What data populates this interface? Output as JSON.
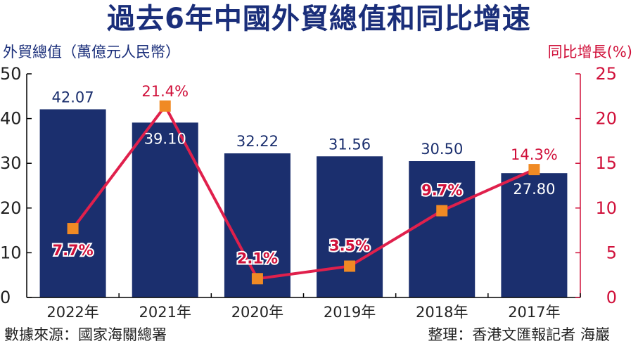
{
  "title": "過去6年中國外貿總值和同比增速",
  "left_axis_label": "外貿總值（萬億元人民幣）",
  "right_axis_label": "同比增長(%)",
  "source": "數據來源：國家海關總署",
  "credit": "整理：香港文匯報記者 海巖",
  "colors": {
    "bar": "#1b2f6e",
    "line": "#e0204c",
    "marker": "#f08a24",
    "left_axis": "#1a2e7a",
    "right_axis": "#d0103a"
  },
  "chart_data": {
    "type": "bar",
    "categories": [
      "2022年",
      "2021年",
      "2020年",
      "2019年",
      "2018年",
      "2017年"
    ],
    "series": [
      {
        "values": [
          42.07,
          39.1,
          32.22,
          31.56,
          30.5,
          27.8
        ],
        "labels": [
          "42.07",
          "39.10",
          "32.22",
          "31.56",
          "30.50",
          "27.80"
        ],
        "axis": "left",
        "kind": "bar"
      },
      {
        "values": [
          7.7,
          21.4,
          2.1,
          3.5,
          9.7,
          14.3
        ],
        "labels": [
          "7.7%",
          "21.4%",
          "2.1%",
          "3.5%",
          "9.7%",
          "14.3%"
        ],
        "axis": "right",
        "kind": "line"
      }
    ],
    "y_left": {
      "ylim": [
        0,
        50
      ],
      "ticks": [
        "0",
        "10",
        "20",
        "30",
        "40",
        "50"
      ]
    },
    "y_right": {
      "ylim": [
        0,
        25
      ],
      "ticks": [
        "0",
        "5",
        "10",
        "15",
        "20",
        "25"
      ]
    },
    "grid": false,
    "legend": "none"
  }
}
